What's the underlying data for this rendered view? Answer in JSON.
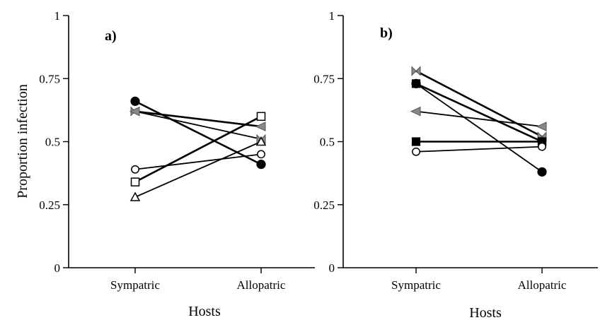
{
  "chart_data": [
    {
      "type": "line",
      "panel_label": "a)",
      "categories": [
        "Sympatric",
        "Allopatric"
      ],
      "xlabel": "Hosts",
      "ylabel": "Proportion infection",
      "ylim": [
        0,
        1
      ],
      "yticks": [
        "0",
        "0.25",
        "0.5",
        "0.75",
        "1"
      ],
      "grid": false,
      "series": [
        {
          "marker": "filled-circle",
          "values": [
            0.66,
            0.41
          ]
        },
        {
          "marker": "bowtie",
          "values": [
            0.62,
            0.51
          ]
        },
        {
          "marker": "grey-triangle-left",
          "values": [
            0.62,
            0.56
          ]
        },
        {
          "marker": "open-circle",
          "values": [
            0.39,
            0.45
          ]
        },
        {
          "marker": "open-square",
          "values": [
            0.34,
            0.6
          ]
        },
        {
          "marker": "open-triangle",
          "values": [
            0.28,
            0.5
          ]
        }
      ]
    },
    {
      "type": "line",
      "panel_label": "b)",
      "categories": [
        "Sympatric",
        "Allopatric"
      ],
      "xlabel": "Hosts",
      "ylabel": "",
      "ylim": [
        0,
        1
      ],
      "yticks": [
        "0",
        "0.25",
        "0.5",
        "0.75",
        "1"
      ],
      "grid": false,
      "series": [
        {
          "marker": "bowtie",
          "values": [
            0.78,
            0.52
          ]
        },
        {
          "marker": "filled-circle",
          "values": [
            0.73,
            0.38
          ]
        },
        {
          "marker": "filled-square",
          "values": [
            0.73,
            0.5
          ]
        },
        {
          "marker": "grey-triangle-left",
          "values": [
            0.62,
            0.56
          ]
        },
        {
          "marker": "filled-square",
          "values": [
            0.5,
            0.5
          ]
        },
        {
          "marker": "open-circle",
          "values": [
            0.46,
            0.48
          ]
        }
      ]
    }
  ]
}
